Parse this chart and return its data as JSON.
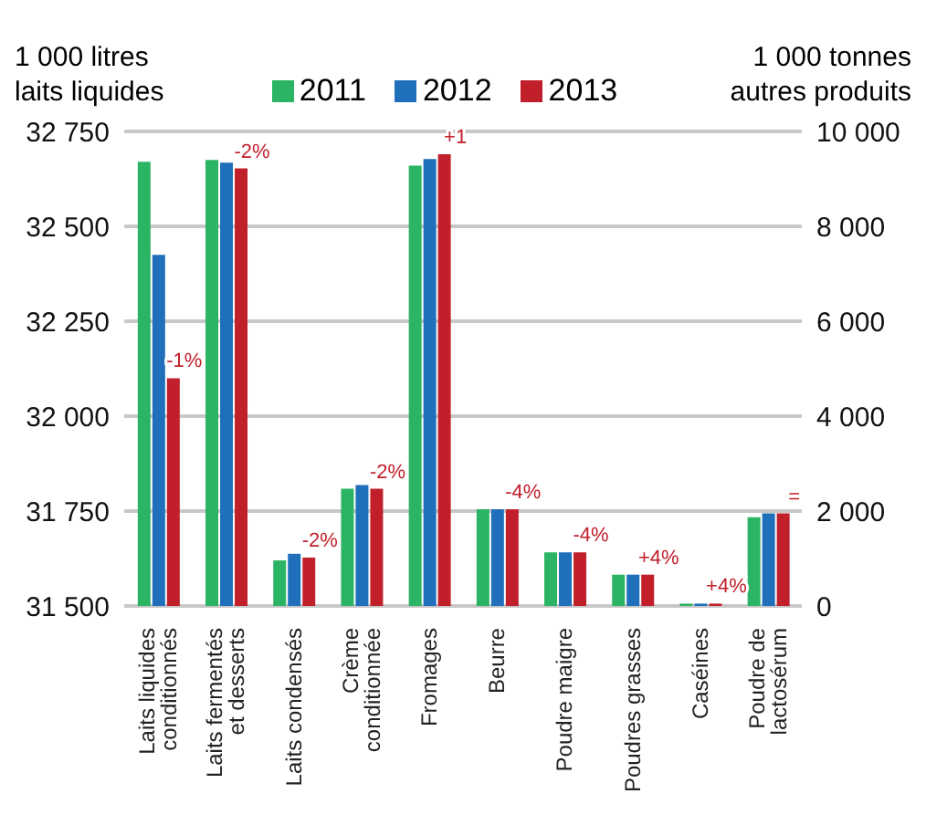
{
  "chart_data": {
    "type": "bar",
    "ylabel": "1 000 litres laits liquides",
    "y2label": "1 000 tonnes autres produits",
    "categories": [
      "Laits liquides conditionnés",
      "Laits fermentés et desserts",
      "Laits condensés",
      "Crème conditionnée",
      "Fromages",
      "Beurre",
      "Poudre maigre",
      "Poudres grasses",
      "Caséines",
      "Poudre de lactosérum"
    ],
    "series": [
      {
        "color": "#2bb463",
        "values": [
          32670,
          null,
          null,
          null,
          null,
          null,
          null,
          null,
          null,
          null
        ]
      },
      {
        "color": "#1f6fba",
        "values": [
          32425,
          null,
          null,
          null,
          null,
          null,
          null,
          null,
          null,
          null
        ]
      },
      {
        "color": "#c1202b",
        "values": [
          32100,
          null,
          null,
          null,
          null,
          null,
          null,
          null,
          null,
          null
        ]
      },
      {
        "name": "2011",
        "color": "#2bb463",
        "axis": "y2",
        "values": [
          null,
          9400,
          960,
          2470,
          9280,
          2040,
          1130,
          660,
          50,
          1870
        ]
      },
      {
        "name": "2012",
        "color": "#1f6fba",
        "axis": "y2",
        "values": [
          null,
          9340,
          1100,
          2550,
          9420,
          2040,
          1130,
          660,
          50,
          1950
        ]
      },
      {
        "name": "2013",
        "color": "#c1202b",
        "axis": "y2",
        "values": [
          null,
          9220,
          1020,
          2470,
          9520,
          2040,
          1130,
          660,
          50,
          1950
        ]
      }
    ],
    "annotations": [
      "-1%",
      "-2%",
      "-2%",
      "-2%",
      "+1",
      "-4%",
      "-4%",
      "+4%",
      "+4%",
      "="
    ],
    "ylim": [
      31500,
      32750
    ],
    "yticks": [
      {
        "value": 31500,
        "label": "31 500"
      },
      {
        "value": 31750,
        "label": "31 750"
      },
      {
        "value": 32000,
        "label": "32 000"
      },
      {
        "value": 32250,
        "label": "32 250"
      },
      {
        "value": 32500,
        "label": "32 500"
      },
      {
        "value": 32750,
        "label": "32 750"
      }
    ],
    "y2lim": [
      0,
      10000
    ],
    "y2ticks": [
      0,
      {
        "value": 2000,
        "label": "2 000"
      },
      {
        "value": 4000,
        "label": "4 000"
      },
      {
        "value": 6000,
        "label": "6 000"
      },
      {
        "value": 8000,
        "label": "8 000"
      },
      {
        "value": 10000,
        "label": "10 000"
      }
    ],
    "grid": "y",
    "legend": "top"
  }
}
